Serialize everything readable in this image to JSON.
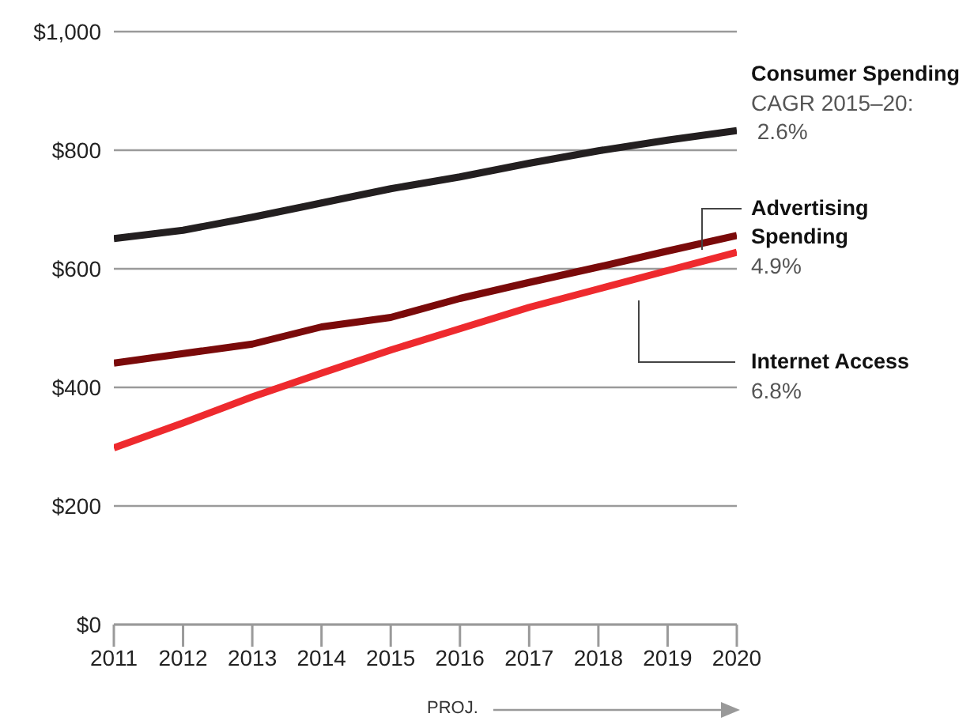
{
  "chart_data": {
    "type": "line",
    "x": [
      2011,
      2012,
      2013,
      2014,
      2015,
      2016,
      2017,
      2018,
      2019,
      2020
    ],
    "xlim": [
      2011,
      2020
    ],
    "xticks": [
      2011,
      2012,
      2013,
      2014,
      2015,
      2016,
      2017,
      2018,
      2019,
      2020
    ],
    "ylim": [
      0,
      1000
    ],
    "yticks": [
      {
        "value": 0,
        "label": "$0"
      },
      {
        "value": 200,
        "label": "$200"
      },
      {
        "value": 400,
        "label": "$400"
      },
      {
        "value": 600,
        "label": "$600"
      },
      {
        "value": 800,
        "label": "$800"
      },
      {
        "value": 1000,
        "label": "$1,000"
      }
    ],
    "grid": "y",
    "line_style": "solid",
    "marker": "none",
    "series": [
      {
        "name": "Consumer Spending",
        "color": "#231f20",
        "values": [
          651,
          665,
          687,
          711,
          735,
          755,
          778,
          799,
          817,
          833
        ]
      },
      {
        "name": "Advertising Spending",
        "color": "#7a0a0a",
        "values": [
          441,
          457,
          473,
          502,
          518,
          550,
          577,
          603,
          630,
          656
        ]
      },
      {
        "name": "Internet Access",
        "color": "#ee2a2e",
        "values": [
          298,
          340,
          384,
          424,
          463,
          499,
          535,
          566,
          597,
          628
        ]
      }
    ],
    "annotations": [
      "CAGR 2015–20:",
      "2.6%",
      "4.9%",
      "6.8%",
      "PROJ."
    ]
  }
}
